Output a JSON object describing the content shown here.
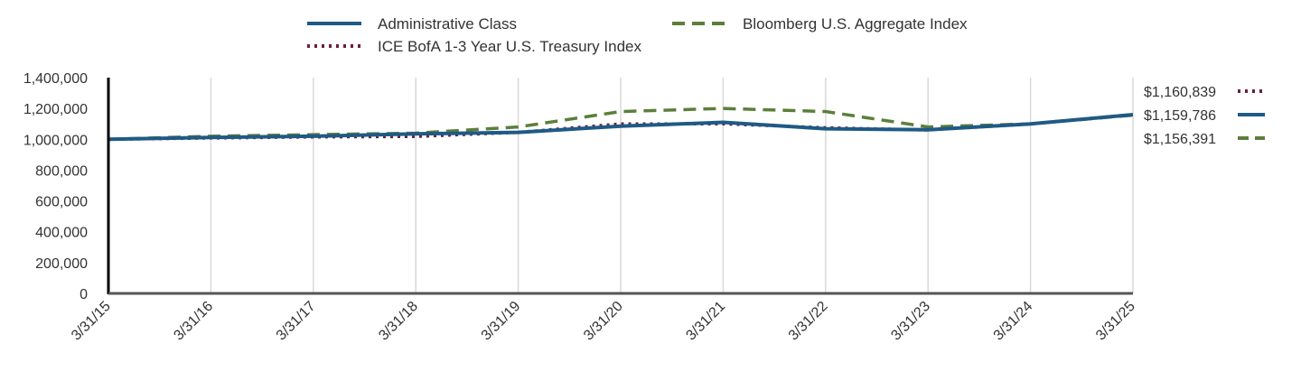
{
  "chart_data": {
    "type": "line",
    "x": [
      "3/31/15",
      "3/31/16",
      "3/31/17",
      "3/31/18",
      "3/31/19",
      "3/31/20",
      "3/31/21",
      "3/31/22",
      "3/31/23",
      "3/31/24",
      "3/31/25"
    ],
    "x_tick_labels": [
      "3/31/15",
      "3/31/16",
      "3/31/17",
      "3/31/18",
      "3/31/19",
      "3/31/20",
      "3/31/21",
      "3/31/22",
      "3/31/23",
      "3/31/24",
      "3/31/25"
    ],
    "ylim": [
      0,
      1400000
    ],
    "y_tick_labels": [
      "0",
      "200,000",
      "400,000",
      "600,000",
      "800,000",
      "1,000,000",
      "1,200,000",
      "1,400,000"
    ],
    "y_ticks": [
      0,
      200000,
      400000,
      600000,
      800000,
      1000000,
      1200000,
      1400000
    ],
    "grid": "vertical",
    "legend_position": "top",
    "series": [
      {
        "name": "Administrative Class",
        "color": "#1f5a85",
        "style": "solid",
        "end_label": "$1,159,786",
        "values": [
          1000000,
          1012000,
          1020000,
          1035000,
          1045000,
          1085000,
          1110000,
          1068000,
          1062000,
          1100000,
          1159786
        ]
      },
      {
        "name": "Bloomberg U.S. Aggregate Index",
        "color": "#5b7f3a",
        "style": "dashed",
        "end_label": "$1,156,391",
        "values": [
          1000000,
          1020000,
          1030000,
          1040000,
          1080000,
          1180000,
          1200000,
          1180000,
          1080000,
          1100000,
          1156391
        ]
      },
      {
        "name": "ICE BofA 1-3 Year U.S. Treasury Index",
        "color": "#6b1f3f",
        "style": "dotted",
        "end_label": "$1,160,839",
        "values": [
          1000000,
          1008000,
          1015000,
          1018000,
          1045000,
          1100000,
          1100000,
          1075000,
          1060000,
          1100000,
          1160839
        ]
      }
    ]
  }
}
